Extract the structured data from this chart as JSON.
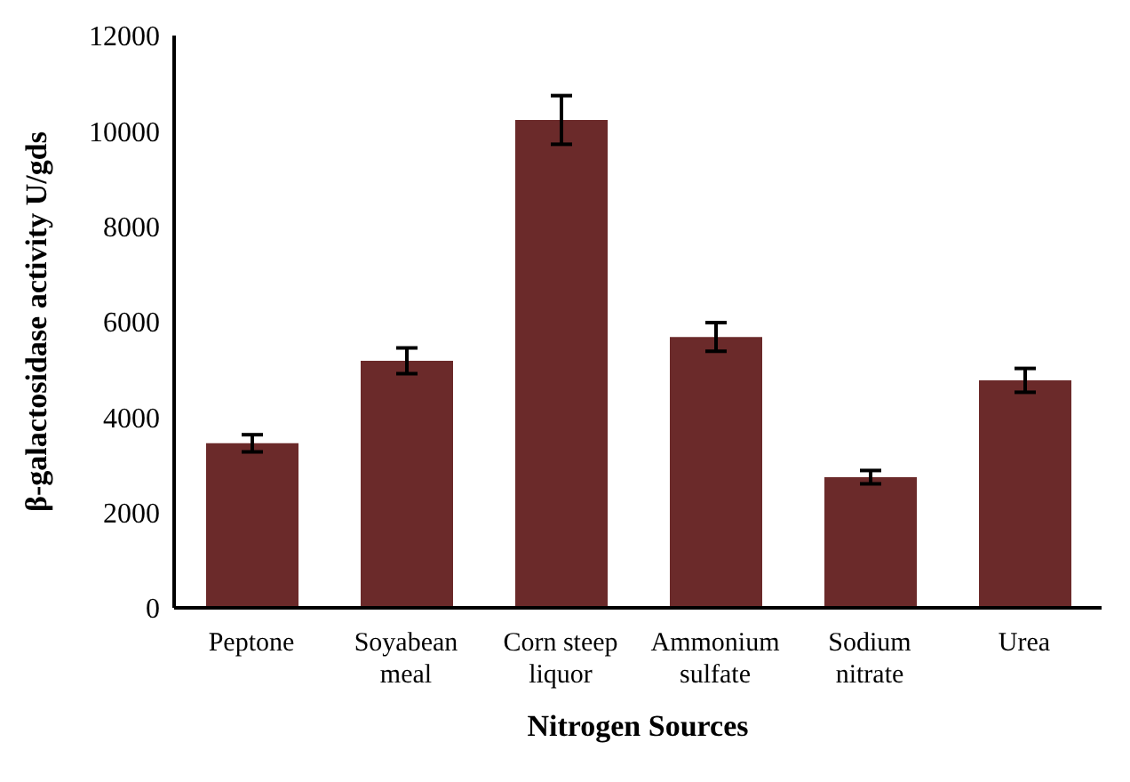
{
  "chart_data": {
    "type": "bar",
    "xlabel": "Nitrogen Sources",
    "ylabel": "β-galactosidase activity U/gds",
    "categories": [
      "Peptone",
      "Soyabean meal",
      "Corn steep liquor",
      "Ammonium sulfate",
      "Sodium nitrate",
      "Urea"
    ],
    "values": [
      3450,
      5180,
      10230,
      5680,
      2740,
      4770
    ],
    "errors": [
      180,
      270,
      510,
      300,
      140,
      250
    ],
    "color": "#6b2a2a",
    "ylim": [
      0,
      12000
    ],
    "yticks": [
      0,
      2000,
      4000,
      6000,
      8000,
      10000,
      12000
    ],
    "grid": false,
    "legend": false
  }
}
